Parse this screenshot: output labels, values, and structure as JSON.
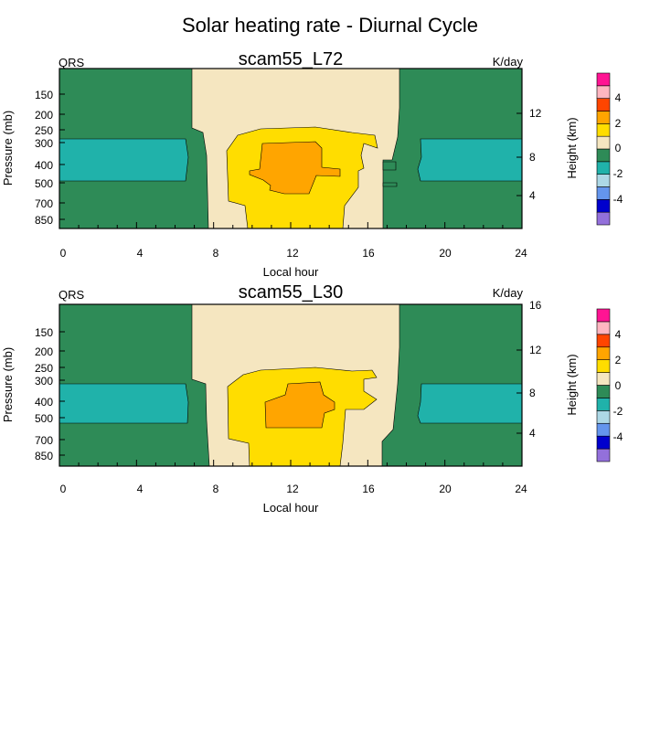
{
  "figure_title": "Solar heating rate - Diurnal Cycle",
  "colors": {
    "neg6": "#9370db",
    "neg5": "#0000cd",
    "neg4": "#6495ed",
    "neg3": "#add8e6",
    "neg2": "#20b2aa",
    "neg1": "#2e8b57",
    "pos0": "#f5e6c0",
    "pos1": "#ffdd00",
    "pos2": "#ffa500",
    "pos3": "#ff4500",
    "pos4": "#ffb6c1",
    "pos5": "#ff1493"
  },
  "chart_data": [
    {
      "type": "contour",
      "title": "scam55_L72",
      "left_label": "QRS",
      "right_label": "K/day",
      "xlabel": "Local hour",
      "ylabel": "Pressure (mb)",
      "right_axis_label": "Height (km)",
      "xlim": [
        0,
        24
      ],
      "x_ticks": [
        "0",
        "4",
        "8",
        "12",
        "16",
        "20",
        "24"
      ],
      "y_ticks": [
        "150",
        "200",
        "250",
        "300",
        "400",
        "500",
        "700",
        "850"
      ],
      "right_ticks": [
        "12",
        "8",
        "4"
      ],
      "colorbar_labels": [
        "4",
        "2",
        "0",
        "-2",
        "-4"
      ]
    },
    {
      "type": "contour",
      "title": "scam55_L30",
      "left_label": "QRS",
      "right_label": "K/day",
      "xlabel": "Local hour",
      "ylabel": "Pressure (mb)",
      "right_axis_label": "Height (km)",
      "xlim": [
        0,
        24
      ],
      "x_ticks": [
        "0",
        "4",
        "8",
        "12",
        "16",
        "20",
        "24"
      ],
      "y_ticks": [
        "150",
        "200",
        "250",
        "300",
        "400",
        "500",
        "700",
        "850"
      ],
      "right_ticks": [
        "16",
        "12",
        "8",
        "4"
      ],
      "colorbar_labels": [
        "4",
        "2",
        "0",
        "-2",
        "-4"
      ]
    }
  ]
}
